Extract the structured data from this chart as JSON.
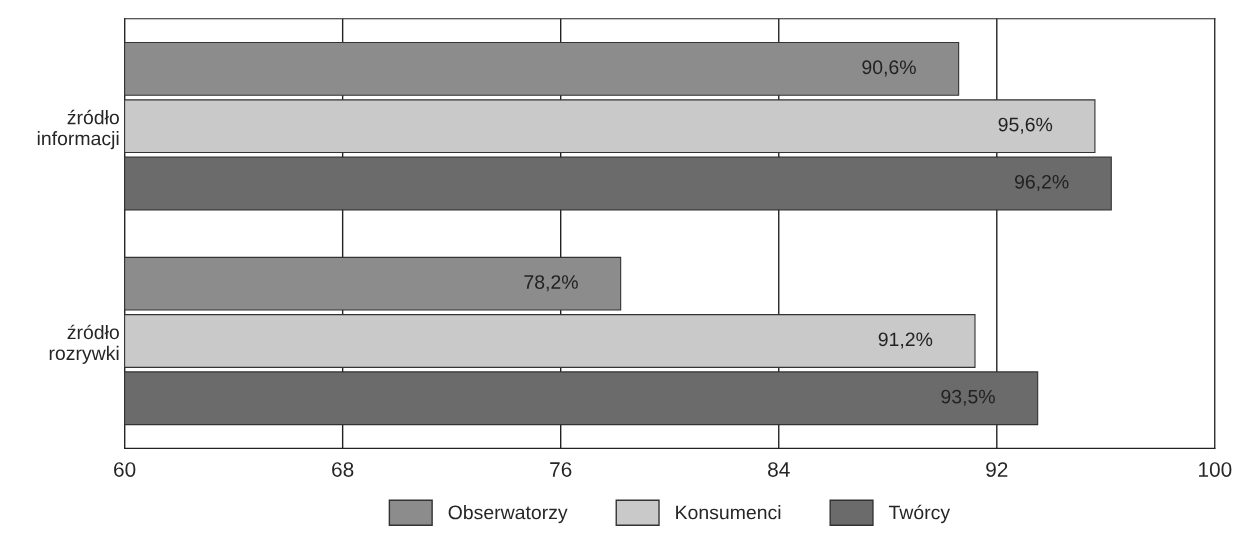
{
  "chart_data": {
    "type": "bar",
    "orientation": "horizontal",
    "categories": [
      "źródło\ninformacji",
      "źródło\nrozrywki"
    ],
    "series": [
      {
        "name": "Obserwatorzy",
        "color": "#8c8c8c",
        "values": [
          90.6,
          78.2
        ],
        "value_labels": [
          "90,6%",
          "78,2%"
        ]
      },
      {
        "name": "Konsumenci",
        "color": "#c9c9c9",
        "values": [
          95.6,
          91.2
        ],
        "value_labels": [
          "95,6%",
          "91,2%"
        ]
      },
      {
        "name": "Twórcy",
        "color": "#6b6b6b",
        "values": [
          96.2,
          93.5
        ],
        "value_labels": [
          "96,2%",
          "93,5%"
        ]
      }
    ],
    "xlim": [
      60,
      100
    ],
    "xticks": [
      60,
      68,
      76,
      84,
      92,
      100
    ],
    "grid": "x",
    "legend": "bottom"
  }
}
